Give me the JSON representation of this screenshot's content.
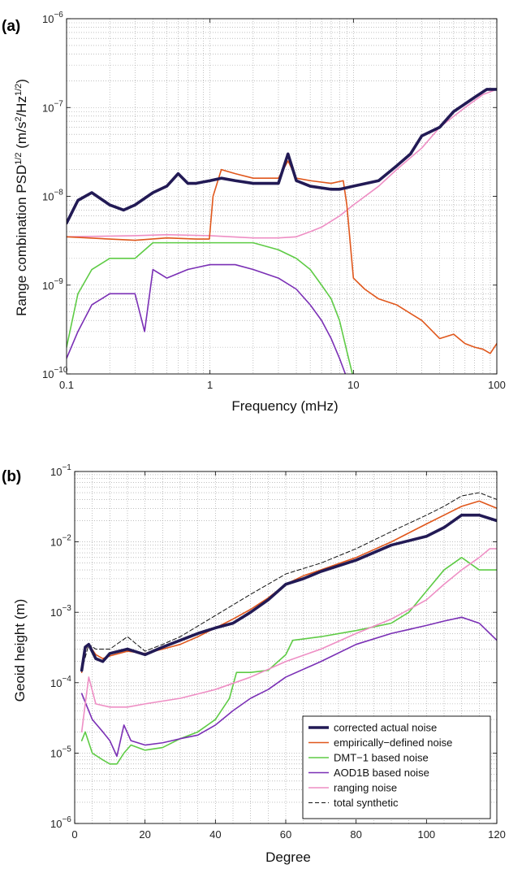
{
  "colors": {
    "corrected": "#221a55",
    "empirical": "#e0571c",
    "dmt": "#5ecb45",
    "aod": "#7a2fb5",
    "ranging": "#ee8ec4",
    "total": "#111111"
  },
  "chart_data": [
    {
      "panel_label": "(a)",
      "type": "line",
      "xscale": "log",
      "yscale": "log",
      "xlim": [
        0.1,
        100
      ],
      "ylim": [
        1e-10,
        1e-06
      ],
      "xlabel": "Frequency (mHz)",
      "ylabel": "Range combination PSD^{1/2} (m/s^2/Hz^{1/2})",
      "xticks": [
        {
          "v": 0.1,
          "label": "0.1"
        },
        {
          "v": 1,
          "label": "1"
        },
        {
          "v": 10,
          "label": "10"
        },
        {
          "v": 100,
          "label": "100"
        }
      ],
      "yticks": [
        {
          "v": 1e-10,
          "base": "10",
          "exp": "−10"
        },
        {
          "v": 1e-09,
          "base": "10",
          "exp": "−9"
        },
        {
          "v": 1e-08,
          "base": "10",
          "exp": "−8"
        },
        {
          "v": 1e-07,
          "base": "10",
          "exp": "−7"
        },
        {
          "v": 1e-06,
          "base": "10",
          "exp": "−6"
        }
      ],
      "grid": true,
      "series": [
        {
          "key": "dmt",
          "x": [
            0.1,
            0.12,
            0.15,
            0.2,
            0.3,
            0.4,
            0.5,
            0.7,
            1.0,
            1.5,
            2.0,
            3.0,
            4.0,
            5.0,
            6.0,
            7.0,
            8.0,
            9.0,
            10.0
          ],
          "y": [
            2e-10,
            8e-10,
            1.5e-09,
            2e-09,
            2e-09,
            3e-09,
            3e-09,
            3e-09,
            3e-09,
            3e-09,
            3e-09,
            2.5e-09,
            2e-09,
            1.5e-09,
            1e-09,
            7e-10,
            4e-10,
            1.8e-10,
            9e-11
          ]
        },
        {
          "key": "aod",
          "x": [
            0.1,
            0.12,
            0.15,
            0.2,
            0.3,
            0.35,
            0.4,
            0.5,
            0.7,
            1.0,
            1.5,
            2.0,
            3.0,
            4.0,
            5.0,
            6.0,
            7.0,
            8.0,
            9.0
          ],
          "y": [
            1.5e-10,
            3e-10,
            6e-10,
            8e-10,
            8e-10,
            3e-10,
            1.5e-09,
            1.2e-09,
            1.5e-09,
            1.7e-09,
            1.7e-09,
            1.5e-09,
            1.2e-09,
            9e-10,
            6e-10,
            4e-10,
            2.5e-10,
            1.5e-10,
            9e-11
          ]
        },
        {
          "key": "ranging",
          "x": [
            0.1,
            0.3,
            0.5,
            1.0,
            2.0,
            3.0,
            4.0,
            5.0,
            6.0,
            8.0,
            10.0,
            15.0,
            20.0,
            30.0,
            40.0,
            60.0,
            80.0,
            100.0
          ],
          "y": [
            3.5e-09,
            3.6e-09,
            3.7e-09,
            3.6e-09,
            3.4e-09,
            3.4e-09,
            3.5e-09,
            4e-09,
            4.5e-09,
            6e-09,
            8e-09,
            1.3e-08,
            2e-08,
            3.5e-08,
            6e-08,
            1e-07,
            1.4e-07,
            1.6e-07
          ]
        },
        {
          "key": "empirical",
          "x": [
            0.1,
            0.2,
            0.3,
            0.5,
            0.8,
            0.99,
            1.05,
            1.2,
            1.5,
            2.0,
            3.0,
            3.5,
            4.0,
            5.0,
            7.0,
            8.5,
            9.0,
            9.5,
            10.0,
            12.0,
            15.0,
            20.0,
            30.0,
            40.0,
            50.0,
            60.0,
            70.0,
            80.0,
            90.0,
            100.0
          ],
          "y": [
            3.5e-09,
            3.3e-09,
            3.2e-09,
            3.4e-09,
            3.3e-09,
            3.3e-09,
            1e-08,
            2e-08,
            1.8e-08,
            1.6e-08,
            1.6e-08,
            2.5e-08,
            1.6e-08,
            1.5e-08,
            1.4e-08,
            1.5e-08,
            8e-09,
            3e-09,
            1.2e-09,
            9e-10,
            7e-10,
            6e-10,
            4e-10,
            2.5e-10,
            2.8e-10,
            2.2e-10,
            2e-10,
            1.9e-10,
            1.7e-10,
            2.2e-10
          ]
        },
        {
          "key": "corrected",
          "x": [
            0.1,
            0.12,
            0.15,
            0.2,
            0.25,
            0.3,
            0.4,
            0.5,
            0.6,
            0.7,
            0.8,
            1.0,
            1.2,
            1.5,
            2.0,
            3.0,
            3.5,
            4.0,
            5.0,
            7.0,
            8.0,
            10.0,
            15.0,
            20.0,
            25.0,
            30.0,
            40.0,
            50.0,
            70.0,
            85.0,
            100.0
          ],
          "y": [
            5e-09,
            9e-09,
            1.1e-08,
            8e-09,
            7e-09,
            8e-09,
            1.1e-08,
            1.3e-08,
            1.8e-08,
            1.4e-08,
            1.4e-08,
            1.5e-08,
            1.6e-08,
            1.5e-08,
            1.4e-08,
            1.4e-08,
            3e-08,
            1.5e-08,
            1.3e-08,
            1.2e-08,
            1.2e-08,
            1.3e-08,
            1.5e-08,
            2.2e-08,
            3e-08,
            4.8e-08,
            6e-08,
            9e-08,
            1.3e-07,
            1.6e-07,
            1.6e-07
          ]
        }
      ]
    },
    {
      "panel_label": "(b)",
      "type": "line",
      "xscale": "linear",
      "yscale": "log",
      "xlim": [
        0,
        120
      ],
      "ylim": [
        1e-06,
        0.1
      ],
      "xlabel": "Degree",
      "ylabel": "Geoid height (m)",
      "xticks": [
        {
          "v": 0,
          "label": "0"
        },
        {
          "v": 20,
          "label": "20"
        },
        {
          "v": 40,
          "label": "40"
        },
        {
          "v": 60,
          "label": "60"
        },
        {
          "v": 80,
          "label": "80"
        },
        {
          "v": 100,
          "label": "100"
        },
        {
          "v": 120,
          "label": "120"
        }
      ],
      "yticks": [
        {
          "v": 1e-06,
          "base": "10",
          "exp": "−6"
        },
        {
          "v": 1e-05,
          "base": "10",
          "exp": "−5"
        },
        {
          "v": 0.0001,
          "base": "10",
          "exp": "−4"
        },
        {
          "v": 0.001,
          "base": "10",
          "exp": "−3"
        },
        {
          "v": 0.01,
          "base": "10",
          "exp": "−2"
        },
        {
          "v": 0.1,
          "base": "10",
          "exp": "−1"
        }
      ],
      "grid": true,
      "legend_position": "bottom-right",
      "series": [
        {
          "key": "dmt",
          "name": "DMT−1 based noise",
          "x": [
            2,
            3,
            5,
            8,
            10,
            12,
            14,
            16,
            20,
            25,
            30,
            35,
            40,
            44,
            46,
            50,
            55,
            60,
            62,
            70,
            80,
            90,
            95,
            100,
            105,
            110,
            115,
            120
          ],
          "y": [
            1.5e-05,
            2e-05,
            1e-05,
            8e-06,
            7e-06,
            7e-06,
            1e-05,
            1.3e-05,
            1.1e-05,
            1.2e-05,
            1.6e-05,
            2e-05,
            3e-05,
            6e-05,
            0.00014,
            0.00014,
            0.00015,
            0.00025,
            0.0004,
            0.00045,
            0.00055,
            0.0007,
            0.001,
            0.002,
            0.004,
            0.006,
            0.004,
            0.004
          ]
        },
        {
          "key": "aod",
          "name": "AOD1B based noise",
          "x": [
            2,
            5,
            8,
            10,
            12,
            14,
            16,
            20,
            25,
            30,
            35,
            40,
            45,
            50,
            55,
            60,
            70,
            80,
            90,
            100,
            105,
            110,
            115,
            120
          ],
          "y": [
            7e-05,
            3e-05,
            2e-05,
            1.5e-05,
            9e-06,
            2.5e-05,
            1.5e-05,
            1.3e-05,
            1.4e-05,
            1.6e-05,
            1.8e-05,
            2.5e-05,
            4e-05,
            6e-05,
            8e-05,
            0.00012,
            0.0002,
            0.00035,
            0.0005,
            0.00065,
            0.00075,
            0.00085,
            0.0007,
            0.0004
          ]
        },
        {
          "key": "ranging",
          "name": "ranging noise",
          "x": [
            2,
            3,
            4,
            6,
            10,
            15,
            20,
            30,
            40,
            50,
            60,
            70,
            80,
            90,
            100,
            105,
            110,
            115,
            118,
            120
          ],
          "y": [
            2e-05,
            5e-05,
            0.00012,
            5e-05,
            4.5e-05,
            4.5e-05,
            5e-05,
            6e-05,
            8e-05,
            0.00012,
            0.0002,
            0.0003,
            0.0005,
            0.0008,
            0.0015,
            0.0025,
            0.004,
            0.006,
            0.008,
            0.008
          ]
        },
        {
          "key": "total",
          "name": "total synthetic",
          "x": [
            2,
            4,
            6,
            10,
            15,
            20,
            25,
            30,
            40,
            50,
            60,
            70,
            80,
            90,
            100,
            105,
            110,
            115,
            120
          ],
          "y": [
            0.00015,
            0.00035,
            0.0003,
            0.0003,
            0.00045,
            0.00028,
            0.00035,
            0.00045,
            0.0009,
            0.0018,
            0.0035,
            0.005,
            0.008,
            0.014,
            0.024,
            0.032,
            0.045,
            0.05,
            0.04
          ]
        },
        {
          "key": "empirical",
          "name": "empirically−defined noise",
          "x": [
            2,
            3,
            4,
            6,
            8,
            10,
            15,
            20,
            25,
            30,
            35,
            40,
            45,
            50,
            55,
            60,
            65,
            70,
            80,
            90,
            100,
            105,
            110,
            115,
            120
          ],
          "y": [
            0.00014,
            0.0003,
            0.00035,
            0.00025,
            0.00022,
            0.00024,
            0.00028,
            0.00026,
            0.0003,
            0.00035,
            0.00045,
            0.0006,
            0.0008,
            0.0011,
            0.0016,
            0.0025,
            0.0033,
            0.004,
            0.006,
            0.01,
            0.018,
            0.024,
            0.032,
            0.038,
            0.03
          ]
        },
        {
          "key": "corrected",
          "name": "corrected actual noise",
          "x": [
            2,
            3,
            4,
            6,
            8,
            10,
            15,
            20,
            25,
            30,
            35,
            40,
            45,
            50,
            55,
            60,
            65,
            70,
            80,
            90,
            100,
            105,
            110,
            115,
            120
          ],
          "y": [
            0.00015,
            0.00032,
            0.00035,
            0.00022,
            0.0002,
            0.00026,
            0.0003,
            0.00025,
            0.00032,
            0.0004,
            0.0005,
            0.0006,
            0.0007,
            0.001,
            0.0015,
            0.0025,
            0.003,
            0.0038,
            0.0055,
            0.009,
            0.012,
            0.016,
            0.024,
            0.024,
            0.02
          ]
        }
      ]
    }
  ]
}
